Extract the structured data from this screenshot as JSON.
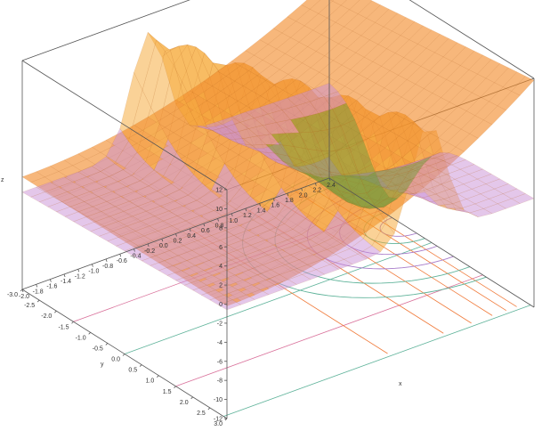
{
  "chart_data": {
    "type": "surface",
    "title": "",
    "xlabel": "x",
    "ylabel": "y",
    "zlabel": "z",
    "xlim": [
      -2.0,
      2.4
    ],
    "ylim": [
      -3.0,
      3.0
    ],
    "zlim": [
      -12,
      12
    ],
    "x_ticks": [
      "-2.0",
      "-1.8",
      "-1.6",
      "-1.4",
      "-1.2",
      "-1.0",
      "-0.8",
      "-0.6",
      "-0.4",
      "-0.2",
      "0.0",
      "0.2",
      "0.4",
      "0.6",
      "0.8",
      "1.0",
      "1.2",
      "1.4",
      "1.6",
      "1.8",
      "2.0",
      "2.2",
      "2.4"
    ],
    "y_ticks": [
      "3.0",
      "2.5",
      "2.0",
      "1.5",
      "1.0",
      "0.5",
      "0.0",
      "-0.5",
      "-1.0",
      "-1.5",
      "-2.0",
      "-2.5",
      "-3.0"
    ],
    "z_ticks": [
      "12",
      "10",
      "8",
      "6",
      "4",
      "2",
      "0",
      "-2",
      "-4",
      "-6",
      "-8",
      "-10",
      "-12"
    ],
    "grid": false,
    "box": true,
    "colors": {
      "surface_main": "#f28a2a",
      "surface_peak": "#f5a530",
      "surface_mid": "#c98fd6",
      "surface_low": "#6f9a3c",
      "contour_orange": "#f07a3a",
      "contour_pink": "#d9709a",
      "contour_teal": "#5fb39a",
      "contour_purple": "#a77ac9",
      "box": "#555555"
    }
  }
}
